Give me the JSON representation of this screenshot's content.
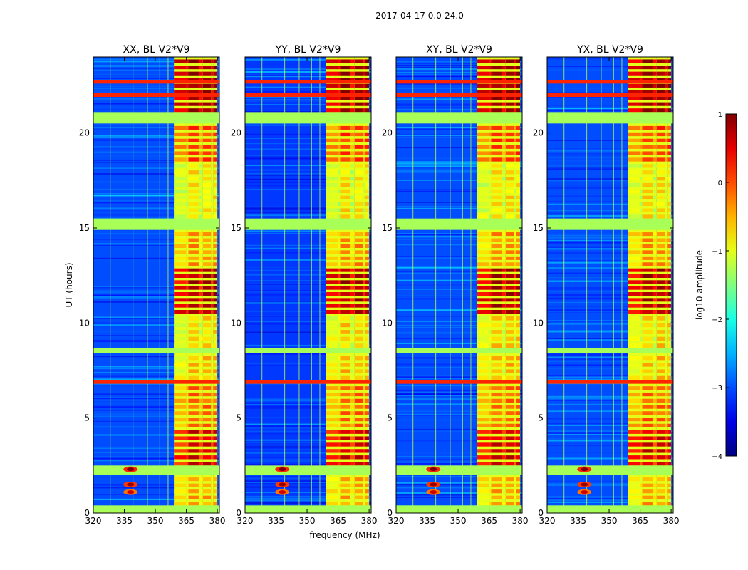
{
  "figure": {
    "suptitle": "2017-04-17 0.0-24.0",
    "xlabel": "frequency (MHz)",
    "ylabel": "UT (hours)"
  },
  "chart_data": {
    "type": "heatmap",
    "title": "2017-04-17 0.0-24.0",
    "xlabel": "frequency (MHz)",
    "ylabel": "UT (hours)",
    "xlim": [
      320,
      381
    ],
    "ylim": [
      0,
      24
    ],
    "xticks": [
      320,
      335,
      350,
      365,
      380
    ],
    "yticks": [
      0,
      5,
      10,
      15,
      20
    ],
    "colorbar": {
      "label": "log10 amplitude",
      "range": [
        -4,
        1
      ],
      "ticks": [
        1,
        0,
        -1,
        -2,
        -3,
        -4
      ],
      "colormap": "jet"
    },
    "panels": [
      {
        "title": "XX, BL V2*V9",
        "background_level": -3.0
      },
      {
        "title": "YY, BL V2*V9",
        "background_level": -3.1
      },
      {
        "title": "XY, BL V2*V9",
        "background_level": -3.0
      },
      {
        "title": "YX, BL V2*V9",
        "background_level": -3.0
      }
    ],
    "rfi_bands_mhz": [
      [
        359,
        365
      ],
      [
        365,
        366
      ],
      [
        366,
        371
      ],
      [
        371,
        373
      ],
      [
        373,
        377
      ],
      [
        377,
        378
      ],
      [
        378,
        380
      ]
    ],
    "flagged_rows_hours": [
      [
        0.0,
        0.4
      ],
      [
        2.0,
        2.5
      ],
      [
        8.4,
        8.7
      ],
      [
        14.9,
        15.5
      ],
      [
        20.5,
        21.1
      ]
    ],
    "strong_rows_hours": [
      [
        6.8,
        7.0
      ],
      [
        21.9,
        22.1
      ],
      [
        22.6,
        22.8
      ]
    ],
    "bright_spots": [
      {
        "freq_mhz": 338,
        "ut_hours": 2.3,
        "level": 1.0
      },
      {
        "freq_mhz": 338,
        "ut_hours": 1.5,
        "level": 0.9
      },
      {
        "freq_mhz": 338,
        "ut_hours": 1.1,
        "level": 0.6
      }
    ],
    "band_activity": [
      {
        "ut_range": [
          0.4,
          2.0
        ],
        "level": -0.4
      },
      {
        "ut_range": [
          2.5,
          4.5
        ],
        "level": 0.6
      },
      {
        "ut_range": [
          4.5,
          6.8
        ],
        "level": -0.1
      },
      {
        "ut_range": [
          7.0,
          8.4
        ],
        "level": -0.5
      },
      {
        "ut_range": [
          8.7,
          10.5
        ],
        "level": -0.6
      },
      {
        "ut_range": [
          10.5,
          13.0
        ],
        "level": 0.8
      },
      {
        "ut_range": [
          13.0,
          14.9
        ],
        "level": -0.3
      },
      {
        "ut_range": [
          15.5,
          18.5
        ],
        "level": -0.7
      },
      {
        "ut_range": [
          18.5,
          20.5
        ],
        "level": 0.1
      },
      {
        "ut_range": [
          21.1,
          24.0
        ],
        "level": 0.95
      }
    ]
  }
}
